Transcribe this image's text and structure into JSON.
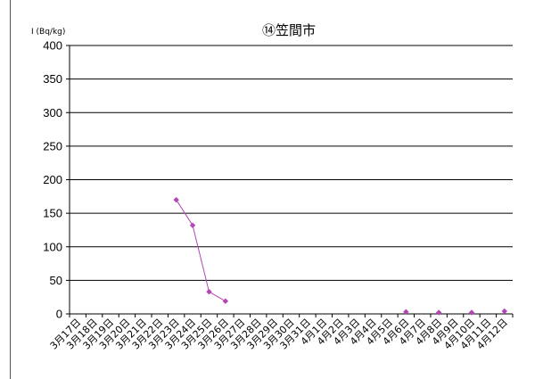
{
  "chart_data": {
    "type": "line",
    "title": "⑭笠間市",
    "ylabel": "I (Bq/kg)",
    "xlabel": "",
    "ylim": [
      0,
      400
    ],
    "yticks": [
      0,
      50,
      100,
      150,
      200,
      250,
      300,
      350,
      400
    ],
    "grid": true,
    "legend": "none",
    "categories": [
      "3月17日",
      "3月18日",
      "3月19日",
      "3月20日",
      "3月21日",
      "3月22日",
      "3月23日",
      "3月24日",
      "3月25日",
      "3月26日",
      "3月27日",
      "3月28日",
      "3月29日",
      "3月30日",
      "3月31日",
      "4月1日",
      "4月2日",
      "4月3日",
      "4月4日",
      "4月5日",
      "4月6日",
      "4月7日",
      "4月8日",
      "4月9日",
      "4月10日",
      "4月11日",
      "4月12日"
    ],
    "series": [
      {
        "color": "#b446b4",
        "values": [
          null,
          null,
          null,
          null,
          null,
          null,
          170,
          132,
          33,
          19,
          null,
          null,
          null,
          null,
          null,
          null,
          null,
          null,
          null,
          null,
          3,
          null,
          2,
          null,
          2,
          null,
          4
        ]
      }
    ]
  }
}
